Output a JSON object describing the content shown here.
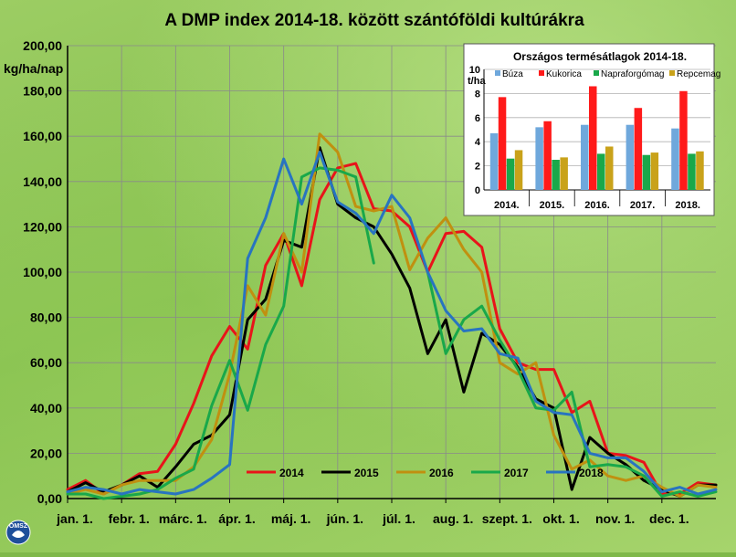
{
  "chart_data": [
    {
      "type": "line",
      "title": "A DMP index 2014-18. között szántóföldi kultúrákra",
      "ylabel": "kg/ha/nap",
      "ylim": [
        0,
        200
      ],
      "yticks": [
        "0,00",
        "20,00",
        "40,00",
        "60,00",
        "80,00",
        "100,00",
        "120,00",
        "140,00",
        "160,00",
        "180,00",
        "200,00"
      ],
      "xticks": [
        "jan. 1.",
        "febr. 1.",
        "márc. 1.",
        "ápr. 1.",
        "máj. 1.",
        "jún. 1.",
        "júl. 1.",
        "aug. 1.",
        "szept. 1.",
        "okt. 1.",
        "nov. 1.",
        "dec. 1."
      ],
      "x_unit": "dekád (10 napos időszak)",
      "grid": true,
      "legend": "bottom-center",
      "series": [
        {
          "name": "2014",
          "color": "#e8141a",
          "values": [
            4,
            8,
            2,
            6,
            11,
            12,
            24,
            42,
            63,
            76,
            66,
            103,
            117,
            94,
            132,
            146,
            148,
            128,
            127,
            120,
            100,
            117,
            118,
            111,
            75,
            60,
            57,
            57,
            38,
            43,
            20,
            19,
            16,
            2,
            2,
            7,
            6
          ]
        },
        {
          "name": "2015",
          "color": "#000000",
          "values": [
            3,
            7,
            3,
            6,
            10,
            5,
            14,
            24,
            28,
            37,
            79,
            88,
            114,
            111,
            155,
            130,
            124,
            120,
            108,
            93,
            64,
            79,
            47,
            73,
            68,
            58,
            44,
            40,
            4,
            27,
            20,
            15,
            8,
            4,
            1,
            6,
            6
          ]
        },
        {
          "name": "2016",
          "color": "#c09010",
          "values": [
            2,
            4,
            2,
            6,
            8,
            8,
            8,
            14,
            26,
            55,
            94,
            81,
            117,
            100,
            161,
            153,
            129,
            127,
            129,
            101,
            115,
            124,
            110,
            100,
            60,
            55,
            60,
            28,
            13,
            17,
            10,
            8,
            10,
            5,
            1,
            6,
            5
          ]
        },
        {
          "name": "2017",
          "color": "#19a84a",
          "values": [
            2,
            2,
            0,
            1,
            2,
            4,
            9,
            13,
            41,
            61,
            39,
            68,
            85,
            142,
            146,
            145,
            142,
            104,
            null,
            null,
            100,
            64,
            79,
            85,
            70,
            57,
            40,
            39,
            47,
            14,
            15,
            14,
            10,
            1,
            3,
            1,
            3
          ]
        },
        {
          "name": "2018",
          "color": "#2874c0",
          "values": [
            3,
            5,
            4,
            2,
            4,
            3,
            2,
            4,
            9,
            15,
            106,
            124,
            150,
            130,
            153,
            131,
            126,
            117,
            134,
            124,
            100,
            83,
            74,
            75,
            64,
            62,
            43,
            38,
            37,
            20,
            18,
            18,
            12,
            3,
            5,
            2,
            4
          ]
        }
      ]
    },
    {
      "type": "bar",
      "title": "Országos termésátlagok 2014-18.",
      "ylabel": "t/ha",
      "ylim": [
        0,
        10
      ],
      "yticks": [
        "0",
        "2",
        "4",
        "6",
        "8",
        "10"
      ],
      "categories": [
        "2014.",
        "2015.",
        "2016.",
        "2017.",
        "2018."
      ],
      "legend": "top",
      "series": [
        {
          "name": "Búza",
          "color": "#6fa8dc",
          "values": [
            4.7,
            5.2,
            5.4,
            5.4,
            5.1
          ]
        },
        {
          "name": "Kukorica",
          "color": "#ff1a1a",
          "values": [
            7.7,
            5.7,
            8.6,
            6.8,
            8.2
          ]
        },
        {
          "name": "Napraforgómag",
          "color": "#19a84a",
          "values": [
            2.6,
            2.5,
            3.0,
            2.9,
            3.0
          ]
        },
        {
          "name": "Repcemag",
          "color": "#c9a21a",
          "values": [
            3.3,
            2.7,
            3.6,
            3.1,
            3.2
          ]
        }
      ]
    }
  ],
  "logo": {
    "text": "OMSZ"
  }
}
